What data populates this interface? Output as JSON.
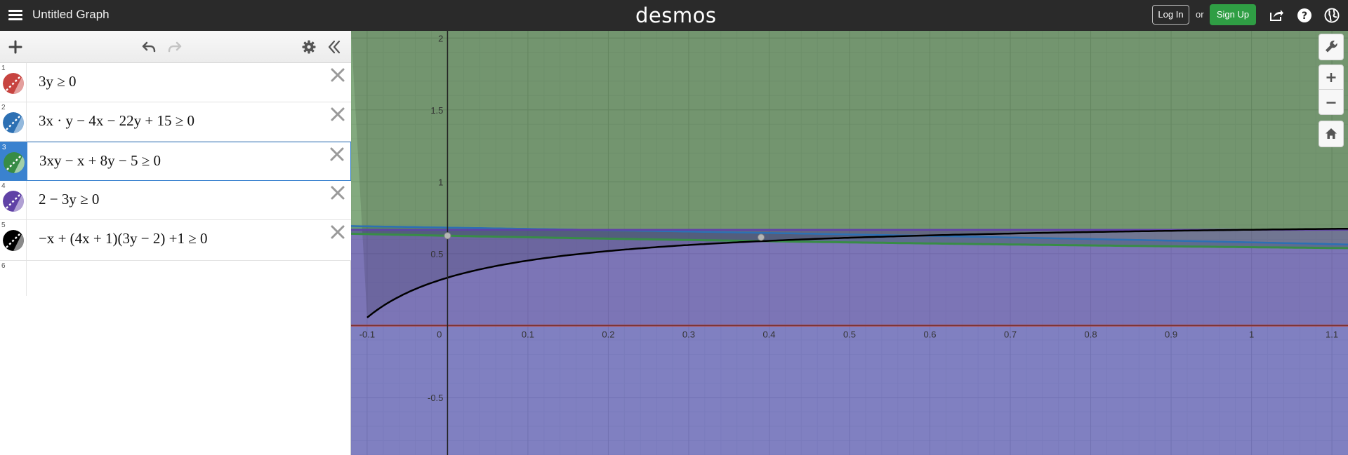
{
  "app": {
    "graph_title": "Untitled Graph",
    "brand": "desmos",
    "login_label": "Log In",
    "or_label": "or",
    "signup_label": "Sign Up"
  },
  "icons": {
    "menu": "hamburger-icon",
    "share": "share-icon",
    "help": "help-icon",
    "language": "globe-icon",
    "add": "plus-icon",
    "undo": "undo-icon",
    "redo": "redo-icon",
    "settings": "gear-icon",
    "collapse": "double-chevron-left-icon",
    "delete": "close-icon",
    "wrench": "wrench-icon",
    "zoom_in": "plus-icon",
    "zoom_out": "minus-icon",
    "home": "home-icon"
  },
  "expressions": [
    {
      "num": "1",
      "text": "3y ≥ 0",
      "color": "#c74440"
    },
    {
      "num": "2",
      "text": "3x · y − 4x − 22y + 15 ≥ 0",
      "color": "#2d70b3"
    },
    {
      "num": "3",
      "text": "3xy − x + 8y − 5 ≥ 0",
      "color": "#388c46"
    },
    {
      "num": "4",
      "text": "2 − 3y ≥ 0",
      "color": "#6042a6"
    },
    {
      "num": "5",
      "text": "−x + (4x + 1)(3y − 2) +1 ≥ 0",
      "color": "#000000"
    }
  ],
  "empty_row_num": "6",
  "chart_data": {
    "type": "line",
    "xlim": [
      -0.12,
      1.12
    ],
    "ylim": [
      -0.9,
      2.05
    ],
    "x_ticks": [
      "-0.1",
      "0",
      "0.1",
      "0.2",
      "0.3",
      "0.4",
      "0.5",
      "0.6",
      "0.7",
      "0.8",
      "0.9",
      "1",
      "1.1"
    ],
    "y_ticks": [
      "-0.5",
      "0.5",
      "1",
      "1.5",
      "2"
    ],
    "grid": true,
    "series": [
      {
        "expression": "3y ≥ 0",
        "color": "#c74440",
        "region": "y ≥ 0"
      },
      {
        "expression": "3x · y − 4x − 22y + 15 ≥ 0",
        "color": "#2d70b3",
        "region": "y ≤ (4x − 15)/(3x − 22)"
      },
      {
        "expression": "3xy − x + 8y − 5 ≥ 0",
        "color": "#388c46",
        "region": "y ≥ (x + 5)/(3x + 8)"
      },
      {
        "expression": "2 − 3y ≥ 0",
        "color": "#6042a6",
        "region": "y ≤ 2/3"
      },
      {
        "expression": "−x + (4x + 1)(3y − 2) +1 ≥ 0",
        "color": "#000000",
        "region": "y ≥ (9x + 1)/(12x + 3)"
      }
    ],
    "points": [
      {
        "x": 0,
        "y": 0.625
      },
      {
        "x": 0.39,
        "y": 0.614
      }
    ]
  }
}
